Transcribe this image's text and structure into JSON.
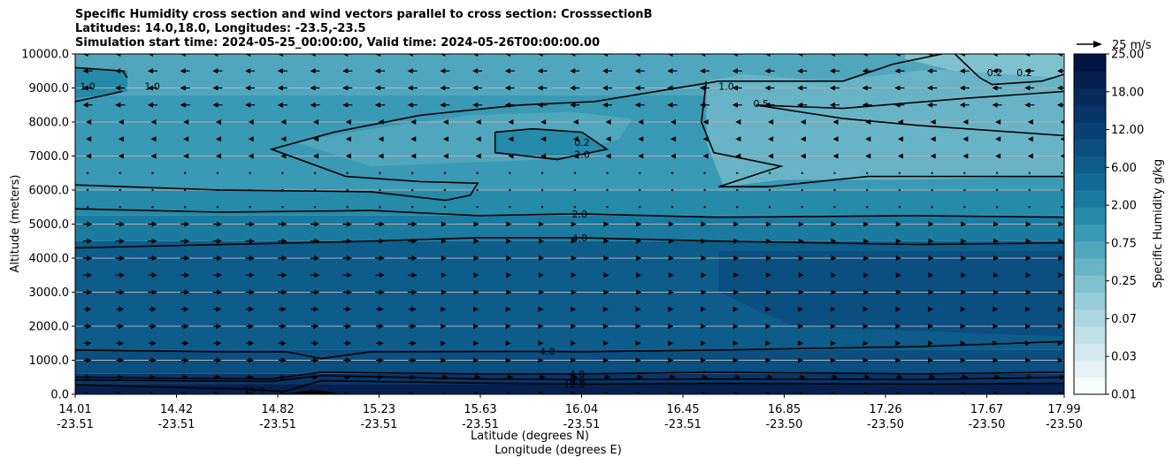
{
  "chart_data": {
    "type": "heatmap",
    "title_lines": [
      "Specific Humidity cross section and wind vectors parallel to cross section: CrosssectionB",
      "Latitudes: 14.0,18.0, Longitudes: -23.5,-23.5",
      "Simulation start time: 2024-05-25_00:00:00, Valid time: 2024-05-26T00:00:00.00"
    ],
    "ylabel": "Altitude (meters)",
    "xlabel_lat": "Latitude (degrees N)",
    "xlabel_lon": "Longitude (degrees E)",
    "ylim": [
      0,
      10000
    ],
    "y_ticks": [
      "0.0",
      "1000.0",
      "2000.0",
      "3000.0",
      "4000.0",
      "5000.0",
      "6000.0",
      "7000.0",
      "8000.0",
      "9000.0",
      "10000.0"
    ],
    "x_ticks": [
      {
        "lat": "14.01",
        "lon": "-23.51"
      },
      {
        "lat": "14.42",
        "lon": "-23.51"
      },
      {
        "lat": "14.82",
        "lon": "-23.51"
      },
      {
        "lat": "15.23",
        "lon": "-23.51"
      },
      {
        "lat": "15.63",
        "lon": "-23.51"
      },
      {
        "lat": "16.04",
        "lon": "-23.51"
      },
      {
        "lat": "16.45",
        "lon": "-23.51"
      },
      {
        "lat": "16.85",
        "lon": "-23.50"
      },
      {
        "lat": "17.26",
        "lon": "-23.50"
      },
      {
        "lat": "17.67",
        "lon": "-23.50"
      },
      {
        "lat": "17.99",
        "lon": "-23.50"
      }
    ],
    "grid": "horizontal",
    "colorbar": {
      "label": "Specific Humidity g/kg",
      "ticks": [
        "0.01",
        "0.03",
        "0.07",
        "0.25",
        "0.75",
        "2.00",
        "6.00",
        "12.00",
        "18.00",
        "25.00"
      ],
      "colors": [
        "#f7fcfd",
        "#e6f2f5",
        "#d4e9ee",
        "#c0e0e7",
        "#acd6df",
        "#97ccd7",
        "#80c1cf",
        "#68b4c6",
        "#50a7bd",
        "#3a99b4",
        "#268aa9",
        "#1a7aa0",
        "#116a95",
        "#0d5c8a",
        "#0b4e80",
        "#0a4174",
        "#083567",
        "#072a5b",
        "#05204f",
        "#031444"
      ]
    },
    "quiver_key": "25 m/s",
    "contour_levels": [
      "0.2",
      "0.5",
      "1.0",
      "2.0",
      "4.0",
      "8.0",
      "12.0"
    ],
    "contour_labels": [
      {
        "text": "1.0",
        "x": 14.06,
        "y": 9050
      },
      {
        "text": "1.0",
        "x": 14.32,
        "y": 9050
      },
      {
        "text": "1.0",
        "x": 16.63,
        "y": 9050
      },
      {
        "text": "0.5",
        "x": 16.77,
        "y": 8550
      },
      {
        "text": "0.2",
        "x": 17.71,
        "y": 9450
      },
      {
        "text": "0.2",
        "x": 17.83,
        "y": 9450
      },
      {
        "text": "0.2",
        "x": 16.05,
        "y": 7400
      },
      {
        "text": "2.0",
        "x": 16.05,
        "y": 7050
      },
      {
        "text": "2.0",
        "x": 16.04,
        "y": 5300
      },
      {
        "text": "4.0",
        "x": 16.04,
        "y": 4600
      },
      {
        "text": "4.0",
        "x": 15.91,
        "y": 1260
      },
      {
        "text": "4.0",
        "x": 16.03,
        "y": 600
      },
      {
        "text": "8.0",
        "x": 16.03,
        "y": 430
      },
      {
        "text": "12.0",
        "x": 16.02,
        "y": 300
      },
      {
        "text": "12.0",
        "x": 14.73,
        "y": 110
      }
    ]
  }
}
